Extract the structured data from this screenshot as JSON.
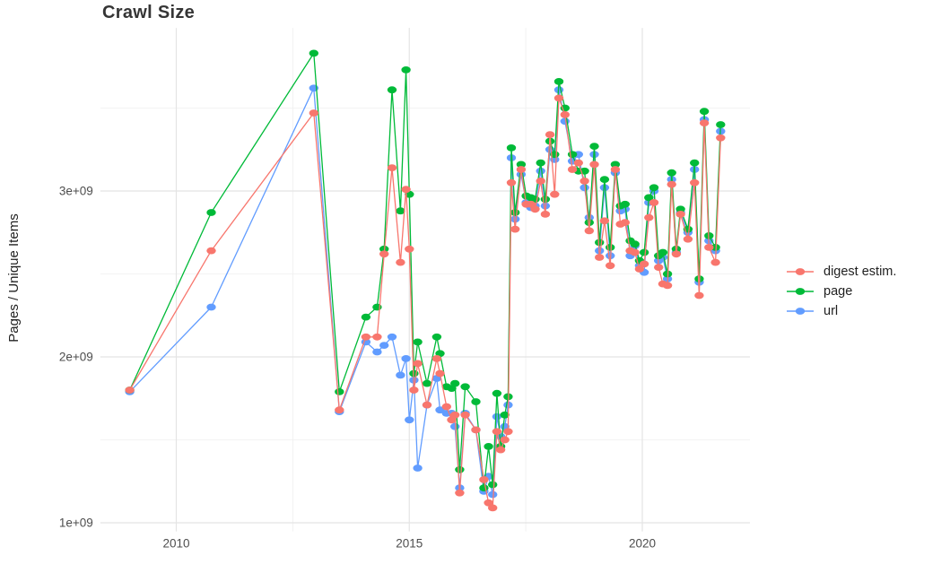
{
  "chart": {
    "title": "Crawl Size",
    "ylabel": "Pages / Unique Items"
  },
  "legend": {
    "items": [
      {
        "label": "digest estim.",
        "color": "#F8766D"
      },
      {
        "label": "page",
        "color": "#00BA38"
      },
      {
        "label": "url",
        "color": "#619CFF"
      }
    ]
  },
  "chart_data": {
    "type": "line",
    "title": "Crawl Size",
    "xlabel": "",
    "ylabel": "Pages / Unique Items",
    "unit": "1e+09 (values below are in billions)",
    "legend_position": "right",
    "grid": true,
    "background": "#ffffff",
    "grid_major_color": "#e4e4e4",
    "grid_minor_color": "#efefef",
    "tick_label_color": "#4d4d4d",
    "xlim": [
      2008.37,
      2022.31
    ],
    "ylim": [
      0.948,
      3.983
    ],
    "x_ticks": [
      {
        "value": 2010,
        "label": "2010"
      },
      {
        "value": 2015,
        "label": "2015"
      },
      {
        "value": 2020,
        "label": "2020"
      }
    ],
    "y_ticks": [
      {
        "value": 1,
        "label": "1e+09"
      },
      {
        "value": 2,
        "label": "2e+09"
      },
      {
        "value": 3,
        "label": "3e+09"
      }
    ],
    "x_minor": [
      2012.5,
      2017.5
    ],
    "y_minor": [
      1.5,
      2.5,
      3.5
    ],
    "x": [
      2009.0,
      2010.75,
      2012.95,
      2013.5,
      2014.07,
      2014.31,
      2014.46,
      2014.63,
      2014.81,
      2014.93,
      2015.0,
      2015.1,
      2015.18,
      2015.38,
      2015.59,
      2015.66,
      2015.8,
      2015.91,
      2015.98,
      2016.08,
      2016.2,
      2016.43,
      2016.6,
      2016.7,
      2016.79,
      2016.88,
      2016.96,
      2017.05,
      2017.12,
      2017.19,
      2017.27,
      2017.4,
      2017.51,
      2017.61,
      2017.7,
      2017.82,
      2017.92,
      2018.02,
      2018.12,
      2018.21,
      2018.34,
      2018.5,
      2018.63,
      2018.76,
      2018.86,
      2018.97,
      2019.08,
      2019.19,
      2019.31,
      2019.42,
      2019.53,
      2019.63,
      2019.74,
      2019.84,
      2019.94,
      2020.04,
      2020.14,
      2020.25,
      2020.35,
      2020.44,
      2020.54,
      2020.63,
      2020.73,
      2020.82,
      2020.98,
      2021.12,
      2021.22,
      2021.33,
      2021.43,
      2021.57,
      2021.68
    ],
    "series": [
      {
        "name": "digest estim.",
        "color": "#F8766D",
        "values": [
          1.8,
          2.64,
          3.47,
          1.68,
          2.12,
          2.12,
          2.62,
          3.14,
          2.57,
          3.01,
          2.65,
          1.8,
          1.96,
          1.71,
          1.99,
          1.9,
          1.7,
          1.62,
          1.65,
          1.18,
          1.65,
          1.56,
          1.26,
          1.12,
          1.09,
          1.55,
          1.44,
          1.5,
          1.55,
          3.05,
          2.77,
          3.13,
          2.92,
          2.92,
          2.89,
          3.06,
          2.86,
          3.34,
          2.98,
          3.56,
          3.46,
          3.13,
          3.17,
          3.06,
          2.76,
          3.16,
          2.6,
          2.82,
          2.55,
          3.13,
          2.8,
          2.81,
          2.64,
          2.63,
          2.53,
          2.56,
          2.84,
          2.93,
          2.54,
          2.44,
          2.43,
          3.04,
          2.62,
          2.86,
          2.71,
          3.05,
          2.37,
          3.41,
          2.66,
          2.57,
          3.32
        ]
      },
      {
        "name": "page",
        "color": "#00BA38",
        "values": [
          1.8,
          2.87,
          3.83,
          1.79,
          2.24,
          2.3,
          2.65,
          3.61,
          2.88,
          3.73,
          2.98,
          1.9,
          2.09,
          1.84,
          2.12,
          2.02,
          1.82,
          1.81,
          1.84,
          1.32,
          1.82,
          1.73,
          1.21,
          1.46,
          1.23,
          1.78,
          1.46,
          1.65,
          1.76,
          3.26,
          2.87,
          3.16,
          2.97,
          2.96,
          2.95,
          3.17,
          2.95,
          3.3,
          3.22,
          3.66,
          3.5,
          3.22,
          3.12,
          3.12,
          2.81,
          3.27,
          2.69,
          3.07,
          2.66,
          3.16,
          2.91,
          2.92,
          2.7,
          2.68,
          2.58,
          2.63,
          2.96,
          3.02,
          2.61,
          2.63,
          2.5,
          3.11,
          2.65,
          2.89,
          2.77,
          3.17,
          2.47,
          3.48,
          2.73,
          2.66,
          3.4
        ]
      },
      {
        "name": "url",
        "color": "#619CFF",
        "values": [
          1.79,
          2.3,
          3.62,
          1.67,
          2.09,
          2.03,
          2.07,
          2.12,
          1.89,
          1.99,
          1.62,
          1.86,
          1.33,
          1.71,
          1.87,
          1.68,
          1.66,
          1.66,
          1.58,
          1.21,
          1.66,
          1.56,
          1.19,
          1.28,
          1.17,
          1.64,
          1.52,
          1.58,
          1.71,
          3.2,
          2.83,
          3.1,
          2.93,
          2.9,
          2.91,
          3.12,
          2.91,
          3.25,
          3.19,
          3.61,
          3.42,
          3.18,
          3.22,
          3.02,
          2.84,
          3.22,
          2.64,
          3.02,
          2.61,
          3.11,
          2.88,
          2.89,
          2.61,
          2.67,
          2.55,
          2.51,
          2.93,
          3.0,
          2.58,
          2.6,
          2.47,
          3.07,
          2.63,
          2.87,
          2.75,
          3.13,
          2.45,
          3.43,
          2.7,
          2.64,
          3.36
        ]
      }
    ]
  }
}
